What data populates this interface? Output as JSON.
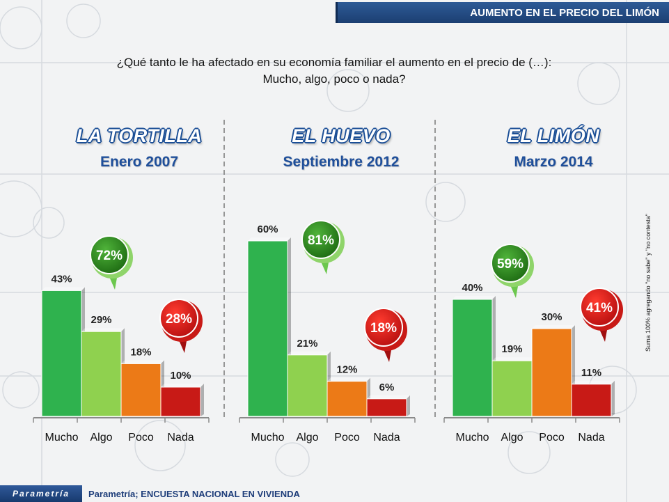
{
  "header": {
    "title": "AUMENTO EN EL PRECIO DEL LIMÓN"
  },
  "question": {
    "line1": "¿Qué tanto le ha afectado en su economía familiar el aumento en el precio de (…):",
    "line2": "Mucho, algo, poco o nada?"
  },
  "side_note": "Suma 100% agregando \"no sabe\" y \"no contesta\"",
  "footer": {
    "logo": "Parametría",
    "source": "Parametría; ENCUESTA NACIONAL  EN VIVIENDA"
  },
  "colors": {
    "mucho": "#2fb24e",
    "algo": "#8fd14f",
    "poco": "#ec7a17",
    "nada": "#c81a16",
    "bubble_green": "#2d8a1e",
    "bubble_red": "#d81e1e",
    "title_blue": "#1f4f9a"
  },
  "chart_data": [
    {
      "type": "bar",
      "title": "LA TORTILLA",
      "subtitle": "Enero 2007",
      "categories": [
        "Mucho",
        "Algo",
        "Poco",
        "Nada"
      ],
      "values": [
        43,
        29,
        18,
        10
      ],
      "labels": [
        "43%",
        "29%",
        "18%",
        "10%"
      ],
      "ylim": [
        0,
        60
      ],
      "annotations": [
        {
          "text": "72%",
          "group": "Mucho+Algo",
          "color": "green"
        },
        {
          "text": "28%",
          "group": "Poco+Nada",
          "color": "red"
        }
      ]
    },
    {
      "type": "bar",
      "title": "EL HUEVO",
      "subtitle": "Septiembre 2012",
      "categories": [
        "Mucho",
        "Algo",
        "Poco",
        "Nada"
      ],
      "values": [
        60,
        21,
        12,
        6
      ],
      "labels": [
        "60%",
        "21%",
        "12%",
        "6%"
      ],
      "ylim": [
        0,
        60
      ],
      "annotations": [
        {
          "text": "81%",
          "group": "Mucho+Algo",
          "color": "green"
        },
        {
          "text": "18%",
          "group": "Poco+Nada",
          "color": "red"
        }
      ]
    },
    {
      "type": "bar",
      "title": "EL LIMÓN",
      "subtitle": "Marzo 2014",
      "categories": [
        "Mucho",
        "Algo",
        "Poco",
        "Nada"
      ],
      "values": [
        40,
        19,
        30,
        11
      ],
      "labels": [
        "40%",
        "19%",
        "30%",
        "11%"
      ],
      "ylim": [
        0,
        60
      ],
      "annotations": [
        {
          "text": "59%",
          "group": "Mucho+Algo",
          "color": "green"
        },
        {
          "text": "41%",
          "group": "Poco+Nada",
          "color": "red"
        }
      ]
    }
  ]
}
